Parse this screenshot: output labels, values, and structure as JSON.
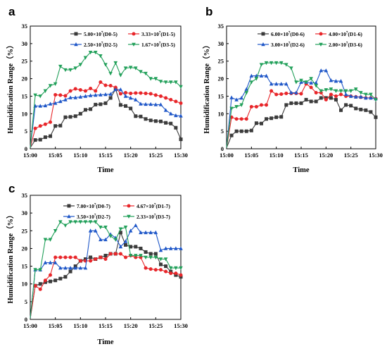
{
  "chart_data": [
    {
      "panel": "a",
      "type": "line",
      "xlabel": "Time",
      "ylabel": "Humidification Range（%）",
      "x_ticks": [
        "15:00",
        "15:05",
        "15:10",
        "15:15",
        "15:20",
        "15:25",
        "15:30"
      ],
      "ylim": [
        0,
        35
      ],
      "y_ticks": [
        "0",
        "5",
        "10",
        "15",
        "20",
        "25",
        "30",
        "35"
      ],
      "x_minutes": [
        0,
        1,
        2,
        3,
        4,
        5,
        6,
        7,
        8,
        9,
        10,
        11,
        12,
        13,
        14,
        15,
        16,
        17,
        18,
        19,
        20,
        21,
        22,
        23,
        24,
        25,
        26,
        27,
        28,
        29,
        30
      ],
      "series": [
        {
          "name": "5.00×10⁷(D0-5)",
          "label_base": "5.00×10",
          "label_exp": "7",
          "label_tail": "(D0-5)",
          "color": "#3b3b3b",
          "marker": "square",
          "values": [
            0.3,
            2.5,
            2.6,
            3.3,
            3.6,
            6.5,
            6.6,
            9.0,
            9.1,
            9.3,
            10.0,
            11.1,
            11.3,
            12.6,
            12.7,
            13.0,
            14.5,
            17.0,
            12.5,
            12.2,
            11.5,
            9.3,
            9.2,
            8.5,
            8.1,
            7.9,
            7.8,
            7.4,
            7.2,
            6.0,
            2.7
          ]
        },
        {
          "name": "3.33×10⁷(D1-5)",
          "label_base": "3.33×10",
          "label_exp": "7",
          "label_tail": "(D1-5)",
          "color": "#e8262a",
          "marker": "circle",
          "values": [
            0.3,
            5.8,
            6.5,
            7.0,
            7.6,
            15.4,
            15.3,
            15.1,
            16.5,
            17.1,
            16.8,
            16.5,
            17.2,
            16.5,
            19.0,
            18.1,
            18.0,
            17.5,
            15.7,
            16.0,
            15.8,
            15.9,
            15.9,
            15.8,
            15.7,
            15.3,
            15.0,
            14.5,
            14.0,
            13.5,
            13.0
          ]
        },
        {
          "name": "2.50×10⁷(D2-5)",
          "label_base": "2.50×10",
          "label_exp": "7",
          "label_tail": "(D2-5)",
          "color": "#1f57c8",
          "marker": "triangle-up",
          "values": [
            0.3,
            12.2,
            12.2,
            12.3,
            12.8,
            13.0,
            13.5,
            14.0,
            14.6,
            14.6,
            14.8,
            15.0,
            15.2,
            15.3,
            15.4,
            15.5,
            15.6,
            16.9,
            16.9,
            15.0,
            14.5,
            14.0,
            12.8,
            12.7,
            12.7,
            12.6,
            12.6,
            11.0,
            10.0,
            9.5,
            9.4
          ]
        },
        {
          "name": "1.67×10⁷(D3-5)",
          "label_base": "1.67×10",
          "label_exp": "7",
          "label_tail": "(D3-5)",
          "color": "#22a05a",
          "marker": "triangle-down",
          "values": [
            0.3,
            15.3,
            15.0,
            16.5,
            18.0,
            18.5,
            23.5,
            22.5,
            22.5,
            23.0,
            24.0,
            26.0,
            27.5,
            27.5,
            26.5,
            24.0,
            21.5,
            24.5,
            21.0,
            23.0,
            23.2,
            23.0,
            22.0,
            21.5,
            20.0,
            20.0,
            19.2,
            19.0,
            19.0,
            19.0,
            17.7
          ]
        }
      ]
    },
    {
      "panel": "b",
      "type": "line",
      "xlabel": "Time",
      "ylabel": "Humidification Range（%）",
      "x_ticks": [
        "15:00",
        "15:05",
        "15:10",
        "15:15",
        "15:20",
        "15:25",
        "15:30"
      ],
      "ylim": [
        0,
        35
      ],
      "y_ticks": [
        "0",
        "5",
        "10",
        "15",
        "20",
        "25",
        "30",
        "35"
      ],
      "x_minutes": [
        0,
        1,
        2,
        3,
        4,
        5,
        6,
        7,
        8,
        9,
        10,
        11,
        12,
        13,
        14,
        15,
        16,
        17,
        18,
        19,
        20,
        21,
        22,
        23,
        24,
        25,
        26,
        27,
        28,
        29,
        30
      ],
      "series": [
        {
          "name": "6.00×10⁷(D0-6)",
          "label_base": "6.00×10",
          "label_exp": "7",
          "label_tail": "(D0-6)",
          "color": "#3b3b3b",
          "marker": "square",
          "values": [
            0.3,
            3.8,
            5.0,
            5.0,
            5.0,
            5.2,
            7.3,
            7.2,
            8.5,
            8.7,
            9.0,
            9.1,
            12.5,
            13.0,
            13.0,
            13.0,
            14.0,
            13.5,
            13.5,
            14.5,
            14.5,
            14.5,
            14.0,
            11.0,
            12.5,
            12.3,
            11.5,
            11.2,
            11.0,
            10.5,
            9.0
          ]
        },
        {
          "name": "4.00×10⁷(D1-6)",
          "label_base": "4.00×10",
          "label_exp": "7",
          "label_tail": "(D1-6)",
          "color": "#e8262a",
          "marker": "circle",
          "values": [
            0.3,
            9.0,
            8.5,
            8.5,
            8.5,
            12.0,
            12.0,
            12.5,
            12.5,
            16.5,
            15.5,
            15.6,
            15.8,
            15.8,
            15.8,
            15.7,
            18.5,
            17.5,
            16.0,
            16.0,
            14.0,
            15.5,
            15.0,
            15.5,
            15.0,
            15.0,
            14.8,
            14.7,
            14.5,
            14.5,
            14.3
          ]
        },
        {
          "name": "3.00×10⁷(D2-6)",
          "label_base": "3.00×10",
          "label_exp": "7",
          "label_tail": "(D2-6)",
          "color": "#1f57c8",
          "marker": "triangle-up",
          "values": [
            0.3,
            14.6,
            14.0,
            14.5,
            17.0,
            20.8,
            20.8,
            20.8,
            20.8,
            18.5,
            18.5,
            18.5,
            18.5,
            16.0,
            16.0,
            19.0,
            19.0,
            18.8,
            18.8,
            22.3,
            22.3,
            19.5,
            19.3,
            19.3,
            15.5,
            15.0,
            14.8,
            14.8,
            14.5,
            14.5,
            14.3
          ]
        },
        {
          "name": "2.00×10⁷(D3-6)",
          "label_base": "2.00×10",
          "label_exp": "7",
          "label_tail": "(D3-6)",
          "color": "#22a05a",
          "marker": "triangle-down",
          "values": [
            0.3,
            11.5,
            12.0,
            12.5,
            16.0,
            19.0,
            20.0,
            24.0,
            24.5,
            24.5,
            24.5,
            24.5,
            24.0,
            23.0,
            19.0,
            19.5,
            19.0,
            20.0,
            18.0,
            16.5,
            16.8,
            17.0,
            16.5,
            16.5,
            16.5,
            16.5,
            17.0,
            16.0,
            15.5,
            15.5,
            14.0
          ]
        }
      ]
    },
    {
      "panel": "c",
      "type": "line",
      "xlabel": "Time",
      "ylabel": "Humidification Range（%）",
      "x_ticks": [
        "15:00",
        "15:05",
        "15:10",
        "15:15",
        "15:20",
        "15:25",
        "15:30"
      ],
      "ylim": [
        0,
        35
      ],
      "y_ticks": [
        "0",
        "5",
        "10",
        "15",
        "20",
        "25",
        "30",
        "35"
      ],
      "x_minutes": [
        0,
        1,
        2,
        3,
        4,
        5,
        6,
        7,
        8,
        9,
        10,
        11,
        12,
        13,
        14,
        15,
        16,
        17,
        18,
        19,
        20,
        21,
        22,
        23,
        24,
        25,
        26,
        27,
        28,
        29,
        30
      ],
      "series": [
        {
          "name": "7.00×10⁷(D0-7)",
          "label_base": "7.00×10",
          "label_exp": "7",
          "label_tail": "(D0-7)",
          "color": "#3b3b3b",
          "marker": "square",
          "values": [
            0.3,
            9.5,
            10.0,
            10.5,
            10.7,
            11.0,
            11.5,
            12.0,
            13.5,
            15.0,
            16.5,
            17.0,
            17.5,
            17.0,
            17.5,
            18.0,
            18.5,
            18.5,
            24.5,
            21.0,
            20.5,
            20.5,
            20.0,
            19.0,
            18.5,
            18.5,
            15.5,
            15.0,
            13.5,
            12.5,
            12.0
          ]
        },
        {
          "name": "4.67×10⁷(D1-7)",
          "label_base": "4.67×10",
          "label_exp": "7",
          "label_tail": "(D1-7)",
          "color": "#e8262a",
          "marker": "circle",
          "values": [
            0.3,
            9.5,
            8.5,
            11.0,
            12.5,
            17.5,
            17.5,
            17.5,
            17.5,
            17.5,
            16.5,
            16.5,
            16.5,
            17.0,
            17.5,
            17.0,
            18.5,
            18.5,
            18.5,
            17.5,
            18.0,
            17.5,
            17.5,
            14.5,
            14.2,
            14.0,
            14.0,
            13.5,
            13.0,
            13.0,
            12.5
          ]
        },
        {
          "name": "3.50×10⁷(D2-7)",
          "label_base": "3.50×10",
          "label_exp": "7",
          "label_tail": "(D2-7)",
          "color": "#1f57c8",
          "marker": "triangle-up",
          "values": [
            0.3,
            14.0,
            14.0,
            16.0,
            16.0,
            16.0,
            14.5,
            14.5,
            14.5,
            14.5,
            14.5,
            14.5,
            25.0,
            25.0,
            22.5,
            22.5,
            24.0,
            23.0,
            20.5,
            22.0,
            25.0,
            26.5,
            24.5,
            24.5,
            24.5,
            24.5,
            19.5,
            20.0,
            20.0,
            20.0,
            20.0
          ]
        },
        {
          "name": "2.33×10⁷(D3-7)",
          "label_base": "2.33×10",
          "label_exp": "7",
          "label_tail": "(D3-7)",
          "color": "#22a05a",
          "marker": "triangle-down",
          "values": [
            0.3,
            14.0,
            14.0,
            22.5,
            22.5,
            25.0,
            27.5,
            26.5,
            27.5,
            27.5,
            27.5,
            27.5,
            27.5,
            27.5,
            26.0,
            26.0,
            23.5,
            22.5,
            25.5,
            26.0,
            18.0,
            18.0,
            18.0,
            17.5,
            17.5,
            17.5,
            17.0,
            17.0,
            14.5,
            14.5,
            14.5
          ]
        }
      ]
    }
  ]
}
